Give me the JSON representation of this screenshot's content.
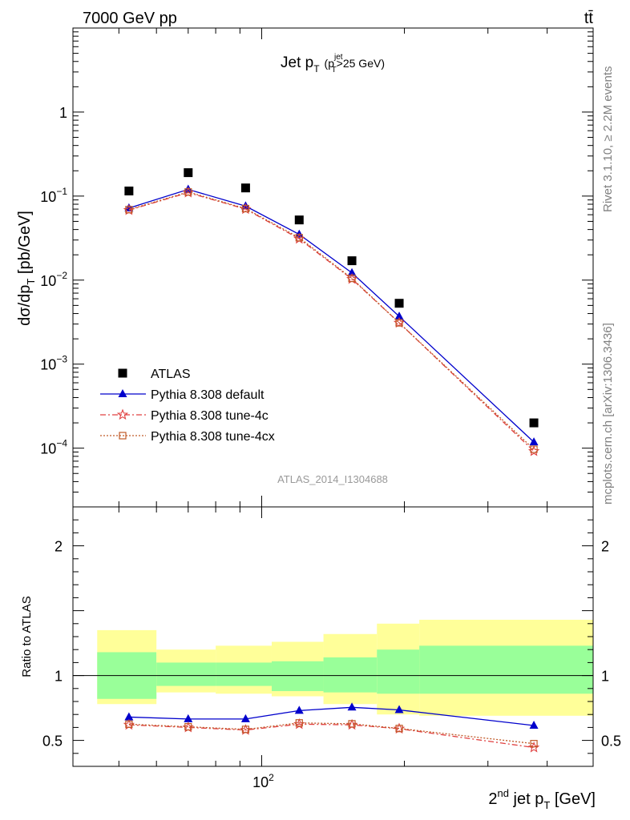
{
  "header": {
    "left": "7000 GeV pp",
    "right": "tt̄"
  },
  "side_labels": {
    "rivet": "Rivet 3.1.10, ≥ 2.2M events",
    "mcplots": "mcplots.cern.ch [arXiv:1306.3436]"
  },
  "chart_data": {
    "type": "scatter",
    "title_main": "Jet p",
    "title_sub": "T",
    "title_cut_pre": "(p",
    "title_cut_sup": "jet",
    "title_cut_sub": "T",
    "title_cut_post": ">25 GeV)",
    "analysis_label": "ATLAS_2014_I1304688",
    "xscale": "log",
    "xlim": [
      40,
      500
    ],
    "x_tick_label": "10",
    "x_tick_exp": "2",
    "xlabel_pre": "2",
    "xlabel_sup": "nd",
    "xlabel_mid": " jet p",
    "xlabel_sub": "T",
    "xlabel_post": " [GeV]",
    "main": {
      "yscale": "log",
      "ylim": [
        2e-05,
        10
      ],
      "ylabel": "dσ/dp",
      "ylabel_sub": "T",
      "ylabel_post": " [pb/GeV]",
      "tick_labels": [
        {
          "base": "10",
          "exp": "−4",
          "value": 0.0001
        },
        {
          "base": "10",
          "exp": "−3",
          "value": 0.001
        },
        {
          "base": "10",
          "exp": "−2",
          "value": 0.01
        },
        {
          "base": "10",
          "exp": "−1",
          "value": 0.1
        },
        {
          "base": "1",
          "exp": "",
          "value": 1
        }
      ]
    },
    "ratio": {
      "ylim": [
        0.3,
        2.3
      ],
      "ylabel": "Ratio to ATLAS",
      "tick_labels": [
        {
          "label": "0.5",
          "value": 0.5
        },
        {
          "label": "1",
          "value": 1
        },
        {
          "label": "2",
          "value": 2
        }
      ]
    },
    "bins": [
      {
        "x": 52.5,
        "lo": 45,
        "hi": 60,
        "data": 0.115,
        "s1_lo": 0.82,
        "s1_hi": 1.18,
        "s2_lo": 0.78,
        "s2_hi": 1.35
      },
      {
        "x": 70,
        "lo": 60,
        "hi": 80,
        "data": 0.19,
        "s1_lo": 0.92,
        "s1_hi": 1.1,
        "s2_lo": 0.87,
        "s2_hi": 1.2
      },
      {
        "x": 92.5,
        "lo": 80,
        "hi": 105,
        "data": 0.125,
        "s1_lo": 0.92,
        "s1_hi": 1.1,
        "s2_lo": 0.86,
        "s2_hi": 1.23
      },
      {
        "x": 120,
        "lo": 105,
        "hi": 135,
        "data": 0.052,
        "s1_lo": 0.88,
        "s1_hi": 1.11,
        "s2_lo": 0.84,
        "s2_hi": 1.26
      },
      {
        "x": 155,
        "lo": 135,
        "hi": 175,
        "data": 0.017,
        "s1_lo": 0.87,
        "s1_hi": 1.14,
        "s2_lo": 0.78,
        "s2_hi": 1.32
      },
      {
        "x": 195,
        "lo": 175,
        "hi": 215,
        "data": 0.0053,
        "s1_lo": 0.86,
        "s1_hi": 1.2,
        "s2_lo": 0.7,
        "s2_hi": 1.4
      },
      {
        "x": 375,
        "lo": 215,
        "hi": 500,
        "data": 0.0002,
        "s1_lo": 0.86,
        "s1_hi": 1.23,
        "s2_lo": 0.69,
        "s2_hi": 1.43
      }
    ],
    "series": [
      {
        "name": "ATLAS",
        "color": "#000000",
        "marker": "square",
        "values": [
          0.115,
          0.19,
          0.125,
          0.052,
          0.017,
          0.0053,
          0.0002
        ]
      },
      {
        "name": "Pythia 8.308 default",
        "color": "#0000cc",
        "marker": "triangle",
        "line": "solid",
        "values": [
          0.072,
          0.12,
          0.076,
          0.035,
          0.0122,
          0.0037,
          0.000118
        ],
        "ratios": [
          0.68,
          0.665,
          0.665,
          0.73,
          0.755,
          0.735,
          0.615
        ]
      },
      {
        "name": "Pythia 8.308 tune-4c",
        "color": "#e04040",
        "marker": "star",
        "line": "dashdot",
        "values": [
          0.068,
          0.11,
          0.07,
          0.031,
          0.0103,
          0.0031,
          9.2e-05
        ],
        "ratios": [
          0.62,
          0.6,
          0.58,
          0.625,
          0.62,
          0.59,
          0.445
        ]
      },
      {
        "name": "Pythia 8.308 tune-4cx",
        "color": "#c05a28",
        "marker": "open-square",
        "line": "dotted",
        "values": [
          0.069,
          0.112,
          0.071,
          0.032,
          0.0105,
          0.0031,
          9.7e-05
        ],
        "ratios": [
          0.625,
          0.605,
          0.585,
          0.635,
          0.628,
          0.592,
          0.475
        ]
      }
    ],
    "band_colors": {
      "inner": "#99ff99",
      "outer": "#ffff99"
    },
    "legend_position": "lower-left"
  }
}
